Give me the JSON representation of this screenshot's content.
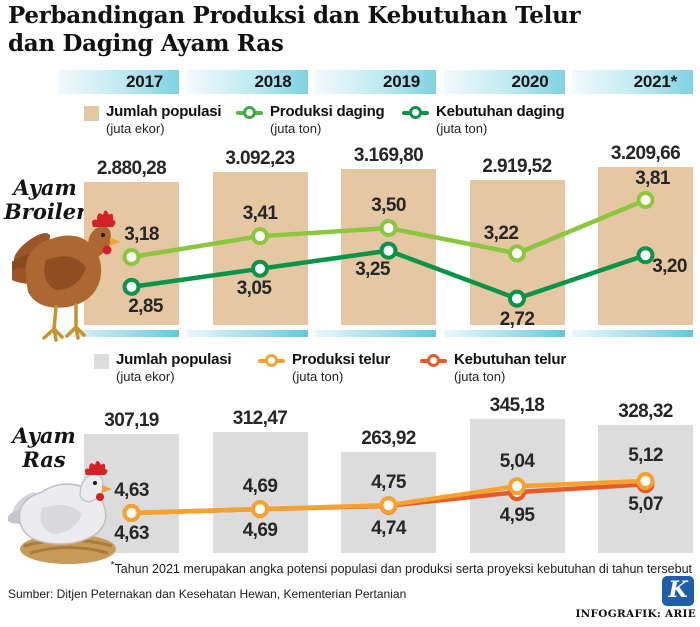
{
  "title": {
    "line1": "Perbandingan Produksi dan Kebutuhan Telur",
    "line2": "dan Daging Ayam Ras"
  },
  "years": [
    "2017",
    "2018",
    "2019",
    "2020",
    "2021*"
  ],
  "colors": {
    "population_bar_broiler": "#e5c7a3",
    "population_bar_layer": "#dcdcdd",
    "produksi_daging": "#8cc63f",
    "kebutuhan_daging": "#0a9447",
    "produksi_telur": "#f6a130",
    "kebutuhan_telur": "#e65b28",
    "header_cyan": "#7fd2e2",
    "logo_blue": "#1f5ea9"
  },
  "broiler": {
    "section_line1": "Ayam",
    "section_line2": "Broiler",
    "legend": [
      {
        "label": "Jumlah populasi",
        "unit": "(juta ekor)"
      },
      {
        "label": "Produksi daging",
        "unit": "(juta ton)"
      },
      {
        "label": "Kebutuhan daging",
        "unit": "(juta ton)"
      }
    ]
  },
  "layer": {
    "section_line1": "Ayam",
    "section_line2": "Ras",
    "legend": [
      {
        "label": "Jumlah populasi",
        "unit": "(juta ekor)"
      },
      {
        "label": "Produksi telur",
        "unit": "(juta ton)"
      },
      {
        "label": "Kebutuhan telur",
        "unit": "(juta ton)"
      }
    ]
  },
  "chart_data": [
    {
      "type": "bar",
      "section": "Ayam Broiler",
      "categories": [
        "2017",
        "2018",
        "2019",
        "2020",
        "2021*"
      ],
      "bars": {
        "name": "Jumlah populasi (juta ekor)",
        "values": [
          2880.28,
          3092.23,
          3169.8,
          2919.52,
          3209.66
        ],
        "display": [
          "2.880,28",
          "3.092,23",
          "3.169,80",
          "2.919,52",
          "3.209,66"
        ],
        "color": "#e5c7a3"
      },
      "series": [
        {
          "name": "Produksi daging (juta ton)",
          "type": "line",
          "values": [
            3.18,
            3.41,
            3.5,
            3.22,
            3.81
          ],
          "display": [
            "3,18",
            "3,41",
            "3,50",
            "3,22",
            "3,81"
          ],
          "color": "#8cc63f"
        },
        {
          "name": "Kebutuhan daging (juta ton)",
          "type": "line",
          "values": [
            2.85,
            3.05,
            3.25,
            2.72,
            3.2
          ],
          "display": [
            "2,85",
            "3,05",
            "3,25",
            "2,72",
            "3,20"
          ],
          "color": "#0a9447"
        }
      ]
    },
    {
      "type": "bar",
      "section": "Ayam Ras",
      "categories": [
        "2017",
        "2018",
        "2019",
        "2020",
        "2021*"
      ],
      "bars": {
        "name": "Jumlah populasi (juta ekor)",
        "values": [
          307.19,
          312.47,
          263.92,
          345.18,
          328.32
        ],
        "display": [
          "307,19",
          "312,47",
          "263,92",
          "345,18",
          "328,32"
        ],
        "color": "#dcdcdd"
      },
      "series": [
        {
          "name": "Produksi telur (juta ton)",
          "type": "line",
          "values": [
            4.63,
            4.69,
            4.75,
            5.04,
            5.12
          ],
          "display": [
            "4,63",
            "4,69",
            "4,75",
            "5,04",
            "5,12"
          ],
          "color": "#f6a130"
        },
        {
          "name": "Kebutuhan telur (juta ton)",
          "type": "line",
          "values": [
            4.63,
            4.69,
            4.74,
            4.95,
            5.07
          ],
          "display": [
            "4,63",
            "4,69",
            "4,74",
            "4,95",
            "5,07"
          ],
          "color": "#e65b28"
        }
      ]
    }
  ],
  "footnote_star": "*",
  "footnote_text": "Tahun 2021 merupakan angka potensi populasi dan produksi serta proyeksi kebutuhan di tahun tersebut",
  "source": "Sumber: Ditjen Peternakan dan Kesehatan Hewan, Kementerian Pertanian",
  "credit": "INFOGRAFIK: ARIE",
  "logo_letter": "K"
}
